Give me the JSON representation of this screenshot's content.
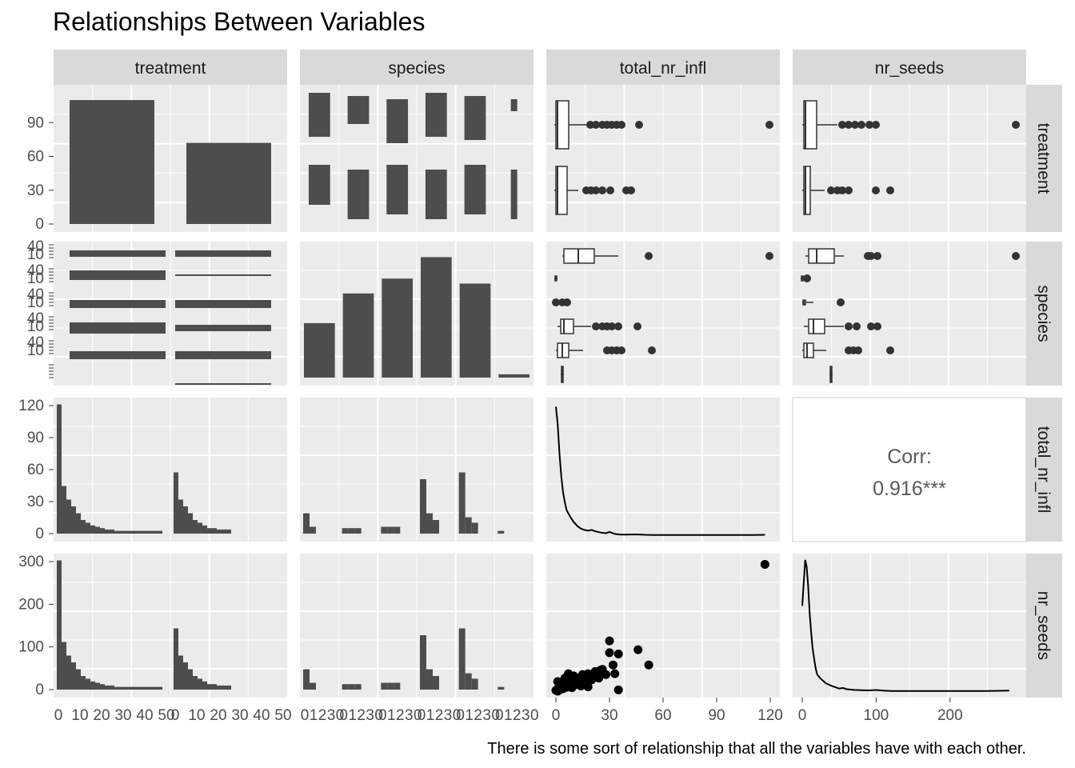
{
  "chart_data": {
    "type": "scatter-matrix",
    "title": "Relationships Between Variables",
    "caption": "There is some sort of relationship that all the variables have with each other.",
    "variables": [
      "treatment",
      "species",
      "total_nr_infl",
      "nr_seeds"
    ],
    "colors": {
      "panel": "#ebebeb",
      "grid": "#ffffff",
      "strip": "#d9d9d9",
      "mark": "#4d4d4d",
      "point": "#000000",
      "corr_text": "#595959"
    },
    "axes": {
      "treatment_count_ticks": [
        "0",
        "30",
        "60",
        "90"
      ],
      "total_nr_infl_ticks": [
        "0",
        "30",
        "60",
        "90",
        "120"
      ],
      "nr_seeds_ticks": [
        "0",
        "100",
        "200",
        "300"
      ],
      "hist_count_ticks": [
        "0",
        "10",
        "20",
        "30",
        "40",
        "50"
      ],
      "species_count_ticks": [
        "0",
        "10",
        "20",
        "30",
        "40"
      ],
      "species_xtick_labels": [
        "0",
        "1",
        "2",
        "3",
        "0"
      ],
      "bottom_total_nr_infl_ticks": [
        "0",
        "30",
        "60",
        "90",
        "120"
      ],
      "bottom_nr_seeds_ticks": [
        "0",
        "100",
        "200"
      ],
      "species_rows_tick_label_pattern": [
        "0",
        "10",
        "20",
        "30",
        "40"
      ]
    },
    "treatment_counts": {
      "groups": 2,
      "values": [
        110,
        72
      ]
    },
    "species_counts": {
      "groups": 6,
      "values": [
        33,
        51,
        60,
        73,
        57,
        2
      ]
    },
    "treatment_by_species_bars": [
      {
        "values": [
          106,
          62
        ],
        "lows": [
          72,
          2
        ]
      },
      {
        "values": [
          102,
          82
        ],
        "lows": [
          4,
          6
        ]
      }
    ],
    "correlation": {
      "label": "Corr:",
      "value": "0.916***",
      "r": 0.916,
      "significance": "***"
    },
    "scatter_total_infl_vs_seeds": {
      "x": [
        0,
        1,
        1,
        2,
        2,
        3,
        3,
        4,
        4,
        5,
        5,
        6,
        6,
        7,
        8,
        9,
        10,
        11,
        12,
        13,
        14,
        15,
        16,
        17,
        18,
        20,
        22,
        24,
        26,
        28,
        30,
        32,
        35,
        46,
        52,
        117,
        2,
        3,
        4,
        5,
        6,
        7,
        1,
        2,
        3,
        8,
        9,
        10,
        12,
        14,
        16,
        18,
        20,
        25,
        30,
        33,
        35
      ],
      "y": [
        2,
        0,
        5,
        3,
        10,
        8,
        15,
        6,
        20,
        12,
        30,
        18,
        25,
        40,
        22,
        28,
        35,
        15,
        30,
        25,
        20,
        38,
        32,
        28,
        40,
        35,
        45,
        30,
        50,
        38,
        115,
        60,
        85,
        95,
        60,
        290,
        10,
        12,
        6,
        18,
        9,
        14,
        22,
        4,
        16,
        26,
        8,
        18,
        30,
        12,
        22,
        10,
        26,
        48,
        88,
        40,
        3
      ]
    },
    "density_total_nr_infl": {
      "x": [
        0,
        1,
        2,
        3,
        4,
        5,
        6,
        8,
        10,
        12,
        14,
        16,
        18,
        20,
        22,
        25,
        28,
        30,
        33,
        36,
        40,
        45,
        50,
        55,
        60,
        70,
        80,
        90,
        100,
        110,
        117
      ],
      "y": [
        0.98,
        0.85,
        0.62,
        0.45,
        0.33,
        0.25,
        0.19,
        0.14,
        0.1,
        0.07,
        0.05,
        0.04,
        0.035,
        0.04,
        0.03,
        0.02,
        0.015,
        0.025,
        0.01,
        0.005,
        0.004,
        0.006,
        0.003,
        0.002,
        0.002,
        0.001,
        0.001,
        0.001,
        0.001,
        0.001,
        0.003
      ]
    },
    "density_nr_seeds": {
      "x": [
        0,
        2,
        4,
        6,
        8,
        10,
        12,
        14,
        16,
        18,
        20,
        24,
        28,
        32,
        36,
        40,
        45,
        50,
        55,
        60,
        70,
        80,
        90,
        100,
        110,
        120,
        150,
        200,
        250,
        280
      ],
      "y": [
        0.65,
        0.82,
        1.0,
        0.95,
        0.8,
        0.6,
        0.45,
        0.33,
        0.25,
        0.18,
        0.13,
        0.1,
        0.08,
        0.06,
        0.05,
        0.04,
        0.03,
        0.02,
        0.025,
        0.015,
        0.01,
        0.008,
        0.006,
        0.009,
        0.004,
        0.002,
        0.001,
        0.001,
        0.001,
        0.004
      ]
    }
  }
}
